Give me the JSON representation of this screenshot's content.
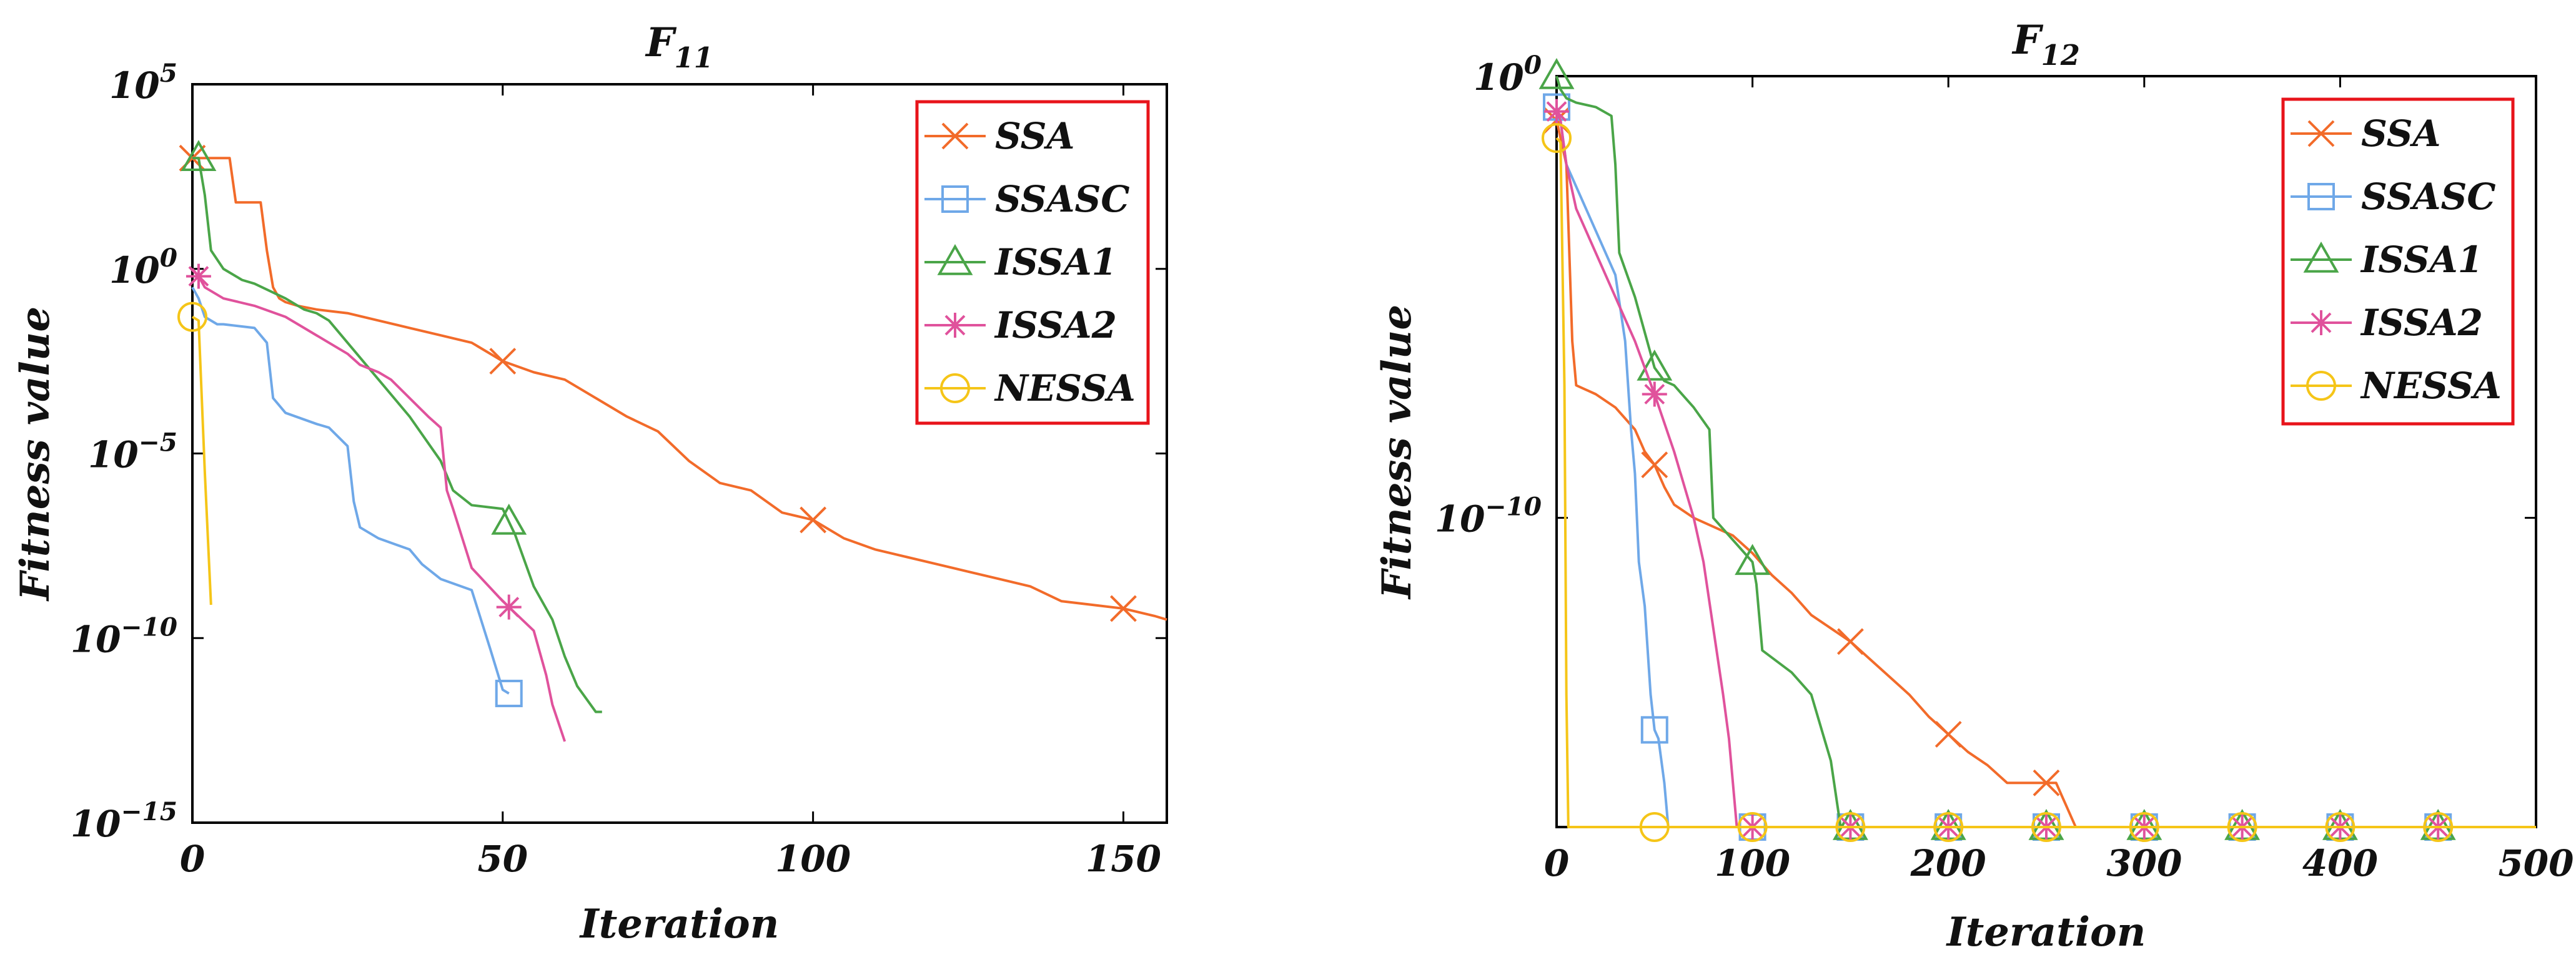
{
  "chart_data": [
    {
      "type": "line",
      "title": "F",
      "title_sub": "11",
      "xlabel": "Iteration",
      "ylabel": "Fitness value",
      "y_scale": "log",
      "xlim": [
        0,
        157
      ],
      "ylim_exp": [
        -15,
        5
      ],
      "x_ticks": [
        0,
        50,
        100,
        150
      ],
      "y_ticks": [
        {
          "exp": 5,
          "base": "10",
          "sup": "5"
        },
        {
          "exp": 0,
          "base": "10",
          "sup": "0"
        },
        {
          "exp": -5,
          "base": "10",
          "sup": "−5"
        },
        {
          "exp": -10,
          "base": "10",
          "sup": "−10"
        },
        {
          "exp": -15,
          "base": "10",
          "sup": "−15"
        }
      ],
      "legend_location": "top-right",
      "series": [
        {
          "name": "SSA",
          "color": "#f26b2a",
          "marker": "x",
          "x": [
            0,
            1,
            2,
            3,
            4,
            5,
            6,
            7,
            8,
            9,
            10,
            11,
            12,
            13,
            14,
            15,
            17,
            20,
            25,
            30,
            35,
            40,
            45,
            50,
            55,
            60,
            65,
            70,
            75,
            80,
            85,
            90,
            95,
            100,
            105,
            110,
            115,
            120,
            125,
            130,
            135,
            140,
            145,
            150,
            155,
            157
          ],
          "log10_y": [
            3.0,
            3.0,
            3.0,
            3.0,
            3.0,
            3.0,
            3.0,
            1.8,
            1.8,
            1.8,
            1.8,
            1.8,
            0.5,
            -0.5,
            -0.8,
            -0.9,
            -1.0,
            -1.1,
            -1.2,
            -1.4,
            -1.6,
            -1.8,
            -2.0,
            -2.5,
            -2.8,
            -3.0,
            -3.5,
            -4.0,
            -4.4,
            -5.2,
            -5.8,
            -6.0,
            -6.6,
            -6.8,
            -7.3,
            -7.6,
            -7.8,
            -8.0,
            -8.2,
            -8.4,
            -8.6,
            -9.0,
            -9.1,
            -9.2,
            -9.4,
            -9.5
          ],
          "marker_x": [
            0,
            50,
            100,
            150
          ]
        },
        {
          "name": "SSASC",
          "color": "#6fa8e8",
          "marker": "square",
          "x": [
            0,
            1,
            2,
            4,
            5,
            10,
            12,
            13,
            15,
            20,
            22,
            25,
            26,
            27,
            30,
            35,
            37,
            40,
            45,
            48,
            50,
            51
          ],
          "log10_y": [
            -0.5,
            -0.8,
            -1.3,
            -1.5,
            -1.5,
            -1.6,
            -2.0,
            -3.5,
            -3.9,
            -4.2,
            -4.3,
            -4.8,
            -6.3,
            -7.0,
            -7.3,
            -7.6,
            -8.0,
            -8.4,
            -8.7,
            -10.3,
            -11.4,
            -11.5
          ],
          "marker_x": [
            51
          ]
        },
        {
          "name": "ISSA1",
          "color": "#4aa548",
          "marker": "triangle",
          "x": [
            0,
            1,
            2,
            3,
            5,
            8,
            10,
            15,
            18,
            20,
            22,
            25,
            28,
            30,
            35,
            40,
            42,
            45,
            50,
            52,
            55,
            58,
            60,
            62,
            65,
            66
          ],
          "log10_y": [
            3.0,
            3.0,
            2.0,
            0.5,
            0.0,
            -0.3,
            -0.4,
            -0.8,
            -1.1,
            -1.2,
            -1.4,
            -2.0,
            -2.6,
            -3.0,
            -4.0,
            -5.2,
            -6.0,
            -6.4,
            -6.5,
            -7.2,
            -8.6,
            -9.5,
            -10.5,
            -11.3,
            -12.0,
            -12.0
          ],
          "marker_x": [
            1,
            51
          ]
        },
        {
          "name": "ISSA2",
          "color": "#e0529c",
          "marker": "star",
          "x": [
            0,
            1,
            2,
            5,
            10,
            15,
            18,
            20,
            22,
            25,
            27,
            30,
            32,
            35,
            38,
            40,
            41,
            42,
            45,
            50,
            55,
            57,
            58,
            60
          ],
          "log10_y": [
            0.0,
            -0.2,
            -0.5,
            -0.8,
            -1.0,
            -1.3,
            -1.6,
            -1.8,
            -2.0,
            -2.3,
            -2.6,
            -2.8,
            -3.0,
            -3.5,
            -4.0,
            -4.3,
            -6.0,
            -6.5,
            -8.1,
            -9.0,
            -9.8,
            -11.0,
            -11.8,
            -12.8
          ],
          "marker_x": [
            1,
            51
          ]
        },
        {
          "name": "NESSA",
          "color": "#f5c518",
          "marker": "circle",
          "x": [
            0,
            1,
            2,
            3
          ],
          "log10_y": [
            -1.3,
            -1.4,
            -5.5,
            -9.1
          ],
          "marker_x": [
            0
          ]
        }
      ]
    },
    {
      "type": "line",
      "title": "F",
      "title_sub": "12",
      "xlabel": "Iteration",
      "ylabel": "Fitness value",
      "y_scale": "log",
      "xlim": [
        0,
        500
      ],
      "ylim_exp": [
        -17,
        0
      ],
      "x_ticks": [
        0,
        100,
        200,
        300,
        400,
        500
      ],
      "y_ticks": [
        {
          "exp": 0,
          "base": "10",
          "sup": "0"
        },
        {
          "exp": -10,
          "base": "10",
          "sup": "−10"
        }
      ],
      "legend_location": "top-right",
      "series": [
        {
          "name": "SSA",
          "color": "#f26b2a",
          "marker": "x",
          "x": [
            0,
            5,
            8,
            10,
            20,
            30,
            40,
            45,
            50,
            55,
            60,
            70,
            80,
            90,
            100,
            110,
            120,
            130,
            140,
            150,
            160,
            170,
            180,
            190,
            200,
            210,
            220,
            230,
            240,
            250,
            255,
            260,
            265,
            270,
            300,
            350,
            400,
            450,
            500
          ],
          "log10_y": [
            -1.0,
            -2.0,
            -6.0,
            -7.0,
            -7.2,
            -7.5,
            -8.0,
            -8.5,
            -8.8,
            -9.3,
            -9.7,
            -10.0,
            -10.2,
            -10.4,
            -10.8,
            -11.3,
            -11.7,
            -12.2,
            -12.5,
            -12.8,
            -13.2,
            -13.6,
            -14.0,
            -14.5,
            -14.9,
            -15.3,
            -15.6,
            -16.0,
            -16.0,
            -16.0,
            -16.0,
            -16.5,
            -17.0,
            -17.0,
            -17.0,
            -17.0,
            -17.0,
            -17.0,
            -17.0
          ],
          "marker_x": [
            0,
            50,
            150,
            200,
            250
          ]
        },
        {
          "name": "SSASC",
          "color": "#6fa8e8",
          "marker": "square",
          "x": [
            0,
            2,
            5,
            10,
            15,
            20,
            25,
            30,
            35,
            38,
            40,
            42,
            45,
            48,
            50,
            52,
            55,
            57,
            60,
            100,
            200,
            300,
            400,
            500
          ],
          "log10_y": [
            -0.7,
            -1.0,
            -2.0,
            -2.5,
            -3.0,
            -3.5,
            -4.0,
            -4.5,
            -6.0,
            -8.0,
            -9.0,
            -11.0,
            -12.0,
            -14.0,
            -14.8,
            -15.0,
            -16.0,
            -17.0,
            -17.0,
            -17.0,
            -17.0,
            -17.0,
            -17.0,
            -17.0
          ],
          "marker_x": [
            0,
            50,
            100,
            150,
            200,
            250,
            300,
            350,
            400,
            450
          ]
        },
        {
          "name": "ISSA1",
          "color": "#4aa548",
          "marker": "triangle",
          "x": [
            0,
            2,
            5,
            10,
            20,
            28,
            30,
            32,
            40,
            50,
            55,
            60,
            70,
            78,
            80,
            90,
            100,
            102,
            105,
            120,
            130,
            140,
            145,
            150,
            200,
            300,
            400,
            500
          ],
          "log10_y": [
            0.0,
            -0.3,
            -0.5,
            -0.6,
            -0.7,
            -0.9,
            -2.0,
            -4.0,
            -5.0,
            -6.6,
            -6.9,
            -7.0,
            -7.5,
            -8.0,
            -10.0,
            -10.5,
            -11.0,
            -11.5,
            -13.0,
            -13.5,
            -14.0,
            -15.5,
            -17.0,
            -17.0,
            -17.0,
            -17.0,
            -17.0,
            -17.0
          ],
          "marker_x": [
            0,
            50,
            100,
            150,
            200,
            250,
            300,
            350,
            400,
            450
          ]
        },
        {
          "name": "ISSA2",
          "color": "#e0529c",
          "marker": "star",
          "x": [
            0,
            2,
            5,
            10,
            20,
            30,
            40,
            50,
            60,
            70,
            75,
            80,
            85,
            88,
            90,
            92,
            100,
            200,
            300,
            400,
            500
          ],
          "log10_y": [
            -0.8,
            -1.0,
            -2.0,
            -3.0,
            -4.0,
            -5.0,
            -6.0,
            -7.2,
            -8.5,
            -10.0,
            -11.0,
            -12.5,
            -14.0,
            -15.0,
            -16.0,
            -17.0,
            -17.0,
            -17.0,
            -17.0,
            -17.0,
            -17.0
          ],
          "marker_x": [
            0,
            50,
            100,
            150,
            200,
            250,
            300,
            350,
            400,
            450
          ]
        },
        {
          "name": "NESSA",
          "color": "#f5c518",
          "marker": "circle",
          "x": [
            0,
            2,
            4,
            5,
            6,
            50,
            100,
            200,
            300,
            400,
            500
          ],
          "log10_y": [
            -1.4,
            -1.5,
            -7.0,
            -14.0,
            -17.0,
            -17.0,
            -17.0,
            -17.0,
            -17.0,
            -17.0,
            -17.0
          ],
          "marker_x": [
            0,
            50,
            100,
            150,
            200,
            250,
            300,
            350,
            400,
            450
          ]
        }
      ]
    }
  ]
}
